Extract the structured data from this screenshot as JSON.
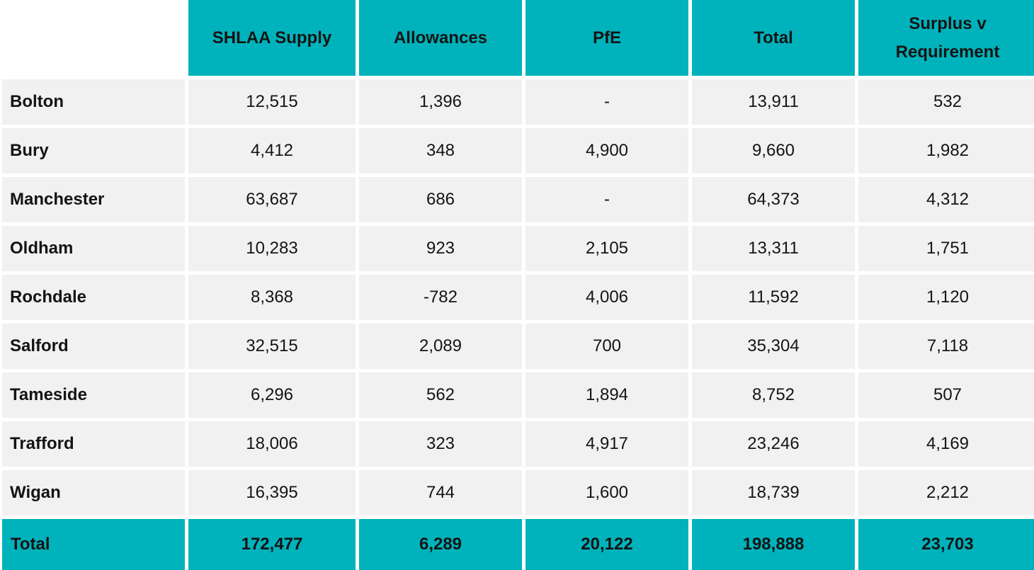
{
  "chart_data": {
    "type": "table",
    "columns": [
      "",
      "SHLAA Supply",
      "Allowances",
      "PfE",
      "Total",
      "Surplus v Requirement"
    ],
    "rows": [
      [
        "Bolton",
        "12,515",
        "1,396",
        "-",
        "13,911",
        "532"
      ],
      [
        "Bury",
        "4,412",
        "348",
        "4,900",
        "9,660",
        "1,982"
      ],
      [
        "Manchester",
        "63,687",
        "686",
        "-",
        "64,373",
        "4,312"
      ],
      [
        "Oldham",
        "10,283",
        "923",
        "2,105",
        "13,311",
        "1,751"
      ],
      [
        "Rochdale",
        "8,368",
        "-782",
        "4,006",
        "11,592",
        "1,120"
      ],
      [
        "Salford",
        "32,515",
        "2,089",
        "700",
        "35,304",
        "7,118"
      ],
      [
        "Tameside",
        "6,296",
        "562",
        "1,894",
        "8,752",
        "507"
      ],
      [
        "Trafford",
        "18,006",
        "323",
        "4,917",
        "23,246",
        "4,169"
      ],
      [
        "Wigan",
        "16,395",
        "744",
        "1,600",
        "18,739",
        "2,212"
      ]
    ],
    "total_row": [
      "Total",
      "172,477",
      "6,289",
      "20,122",
      "198,888",
      "23,703"
    ]
  },
  "colors": {
    "header_bg": "#00b2bb",
    "row_bg": "#f1f1f1",
    "text": "#141414"
  }
}
